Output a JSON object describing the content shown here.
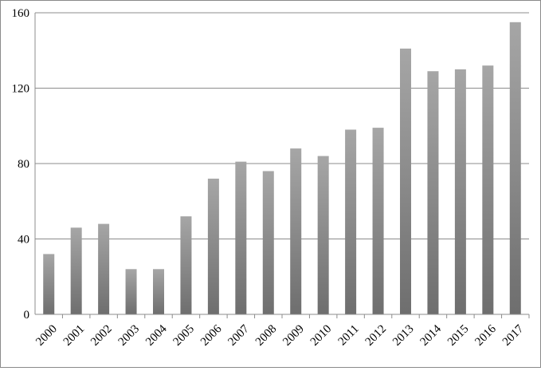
{
  "chart_data": {
    "type": "bar",
    "title": "",
    "xlabel": "",
    "ylabel": "",
    "categories": [
      "2000",
      "2001",
      "2002",
      "2003",
      "2004",
      "2005",
      "2006",
      "2007",
      "2008",
      "2009",
      "2010",
      "2011",
      "2012",
      "2013",
      "2014",
      "2015",
      "2016",
      "2017"
    ],
    "values": [
      32,
      46,
      48,
      24,
      24,
      52,
      72,
      81,
      76,
      88,
      84,
      98,
      99,
      141,
      129,
      130,
      132,
      155
    ],
    "ylim": [
      0,
      160
    ],
    "yticks": [
      "0",
      "40",
      "80",
      "120",
      "160"
    ],
    "grid": true,
    "legend": "none",
    "colors": {
      "bar_top": "#a6a6a6",
      "bar_bottom": "#6e6e6e",
      "gridline": "#8c8c8c",
      "axis": "#8c8c8c"
    }
  }
}
